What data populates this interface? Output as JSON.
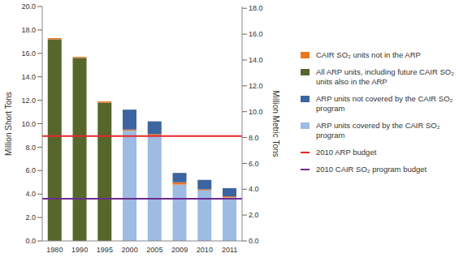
{
  "chart_data": {
    "type": "bar",
    "stacked": true,
    "categories": [
      "1980",
      "1990",
      "1995",
      "2000",
      "2005",
      "2009",
      "2010",
      "2011"
    ],
    "y_label": "Million Short Tons",
    "y2_label": "Million Metric Tons",
    "ylim": [
      0,
      20
    ],
    "yticks": [
      {
        "value": 0,
        "label": "0.0"
      },
      {
        "value": 2,
        "label": "2.0"
      },
      {
        "value": 4,
        "label": "4.0"
      },
      {
        "value": 6,
        "label": "6.0"
      },
      {
        "value": 8,
        "label": "8.0"
      },
      {
        "value": 10,
        "label": "10.0"
      },
      {
        "value": 12,
        "label": "12.0"
      },
      {
        "value": 14,
        "label": "14.0"
      },
      {
        "value": 16,
        "label": "16.0"
      },
      {
        "value": 18,
        "label": "18.0"
      },
      {
        "value": 20,
        "label": "20.0"
      }
    ],
    "y2lim": [
      0,
      18.14
    ],
    "y2ticks": [
      {
        "value": 0,
        "label": "0.0"
      },
      {
        "value": 2,
        "label": "2.0"
      },
      {
        "value": 4,
        "label": "4.0"
      },
      {
        "value": 6,
        "label": "6.0"
      },
      {
        "value": 8,
        "label": "8.0"
      },
      {
        "value": 10,
        "label": "10.0"
      },
      {
        "value": 12,
        "label": "12.0"
      },
      {
        "value": 14,
        "label": "14.0"
      },
      {
        "value": 16,
        "label": "16.0"
      },
      {
        "value": 18,
        "label": "18.0"
      }
    ],
    "series": [
      {
        "name": "CAIR SO₂ units not in the ARP",
        "color": "#e87722",
        "values": [
          0.1,
          0.1,
          0.1,
          0.1,
          0.1,
          0.2,
          0.1,
          0.1
        ]
      },
      {
        "name": "All ARP units, including future CAIR SO₂ units also in the ARP",
        "color": "#56672b",
        "values": [
          17.2,
          15.6,
          11.8,
          0,
          0,
          0,
          0,
          0
        ]
      },
      {
        "name": "ARP units not covered by the CAIR SO₂ program",
        "color": "#3c64a0",
        "values": [
          0,
          0,
          0,
          1.7,
          1.1,
          0.8,
          0.8,
          0.7
        ]
      },
      {
        "name": "ARP units covered by the CAIR SO₂ program",
        "color": "#9dbbe3",
        "values": [
          0,
          0,
          0,
          9.4,
          9.0,
          4.8,
          4.3,
          3.7
        ]
      }
    ],
    "reference_lines": [
      {
        "name": "2010 ARP budget",
        "color": "#e8262b",
        "value": 8.95
      },
      {
        "name": "2010  CAIR SO₂ program budget",
        "color": "#6b2c91",
        "value": 3.6
      }
    ]
  }
}
